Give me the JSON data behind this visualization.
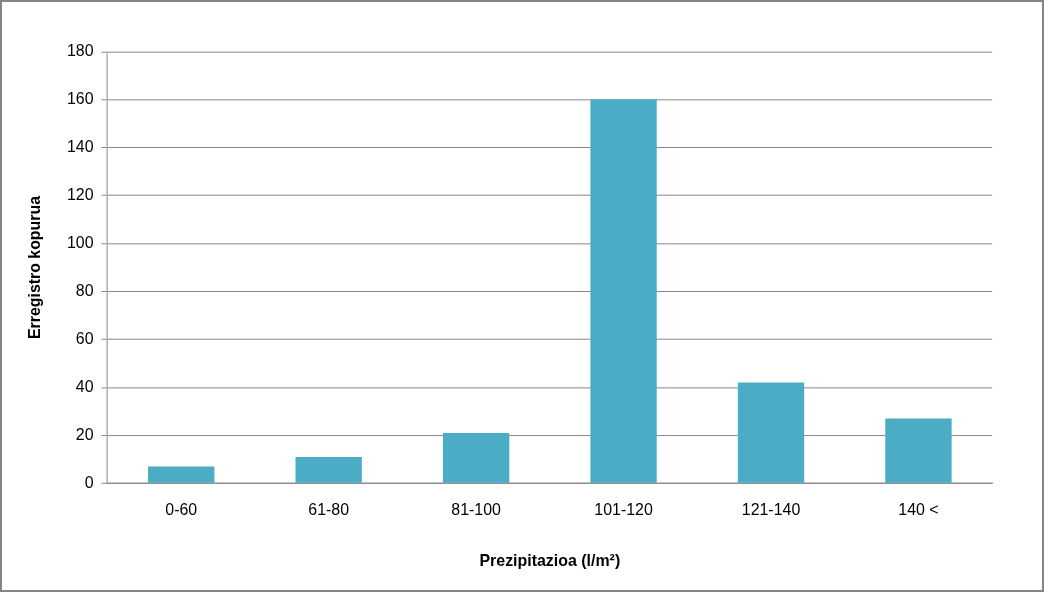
{
  "chart_data": {
    "type": "bar",
    "xlabel": "Prezipitazioa (l/m²)",
    "ylabel": "Erregistro kopurua",
    "categories": [
      "0-60",
      "61-80",
      "81-100",
      "101-120",
      "121-140",
      "140 <"
    ],
    "values": [
      7,
      11,
      21,
      160,
      42,
      27
    ],
    "color": "#4bacc6",
    "ylim": [
      0,
      180
    ],
    "yticks": [
      0,
      20,
      40,
      60,
      80,
      100,
      120,
      140,
      160,
      180
    ],
    "grid": "y",
    "legend": false
  }
}
